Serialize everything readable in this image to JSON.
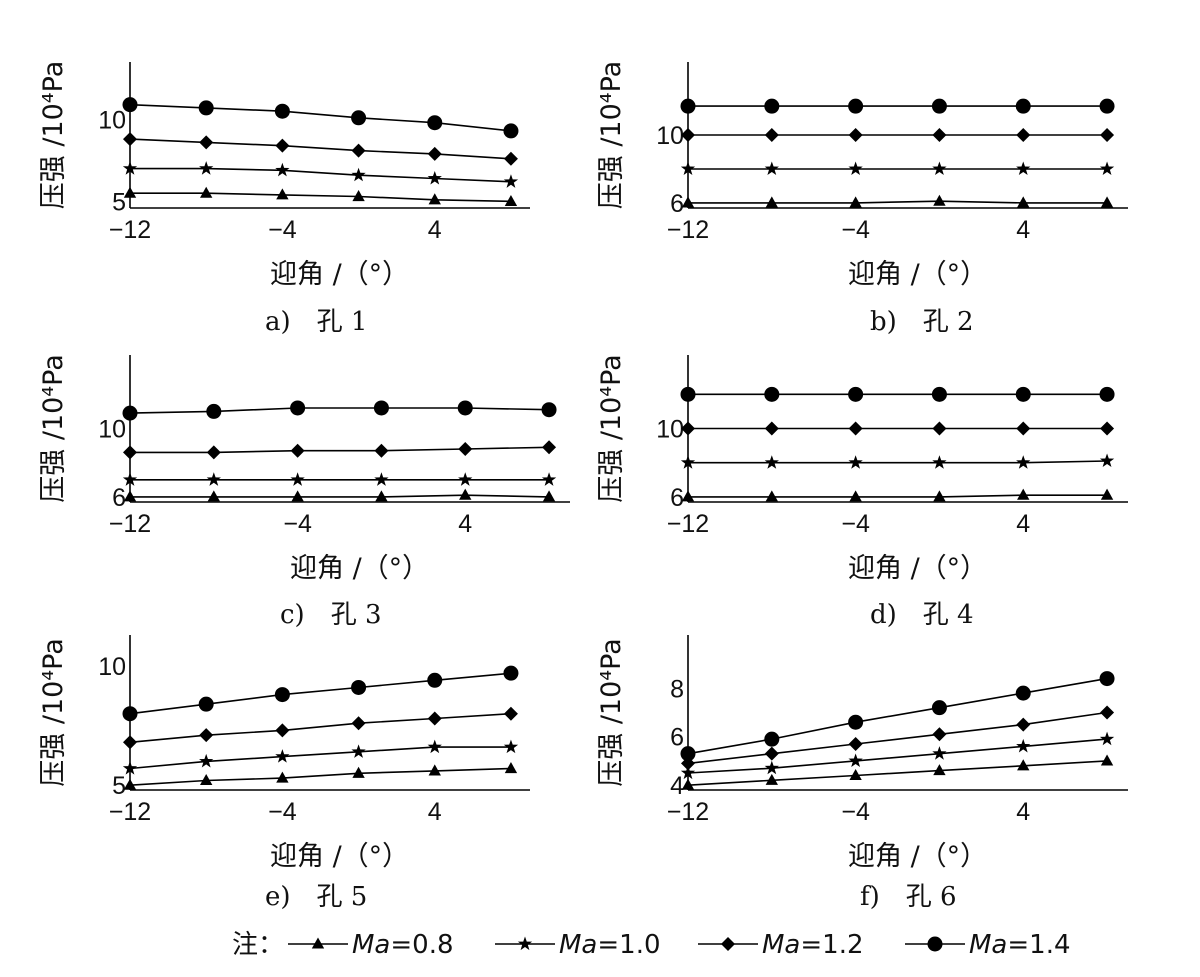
{
  "axis_labels": {
    "x": "迎角 /（°）",
    "y": "压强 /10⁴Pa"
  },
  "legend": {
    "prefix": "注：",
    "entries": [
      {
        "var": "Ma",
        "eq": "=0.8",
        "marker": "triangle"
      },
      {
        "var": "Ma",
        "eq": "=1.0",
        "marker": "star"
      },
      {
        "var": "Ma",
        "eq": "=1.2",
        "marker": "diamond"
      },
      {
        "var": "Ma",
        "eq": "=1.4",
        "marker": "circle"
      }
    ]
  },
  "chart_data": [
    {
      "type": "line",
      "caption": "a)　孔 1",
      "x": [
        -12,
        -8,
        -4,
        0,
        4,
        8
      ],
      "xticks": [
        -12,
        -4,
        4
      ],
      "xlim": [
        -12,
        9
      ],
      "ylim": [
        4.6,
        13.5
      ],
      "yticks": [
        5,
        10
      ],
      "series": [
        {
          "name": "Ma=0.8",
          "marker": "triangle",
          "values": [
            5.5,
            5.5,
            5.4,
            5.3,
            5.1,
            5.0
          ]
        },
        {
          "name": "Ma=1.0",
          "marker": "star",
          "values": [
            7.0,
            7.0,
            6.9,
            6.6,
            6.4,
            6.2
          ]
        },
        {
          "name": "Ma=1.2",
          "marker": "diamond",
          "values": [
            8.8,
            8.6,
            8.4,
            8.1,
            7.9,
            7.6
          ]
        },
        {
          "name": "Ma=1.4",
          "marker": "circle",
          "values": [
            10.9,
            10.7,
            10.5,
            10.1,
            9.8,
            9.3
          ]
        }
      ]
    },
    {
      "type": "line",
      "caption": "b)　孔 2",
      "x": [
        -12,
        -8,
        -4,
        0,
        4,
        8
      ],
      "xticks": [
        -12,
        -4,
        4
      ],
      "xlim": [
        -12,
        9
      ],
      "ylim": [
        5.7,
        14.3
      ],
      "yticks": [
        6,
        10
      ],
      "series": [
        {
          "name": "Ma=0.8",
          "marker": "triangle",
          "values": [
            6.0,
            6.0,
            6.0,
            6.1,
            6.0,
            6.0
          ]
        },
        {
          "name": "Ma=1.0",
          "marker": "star",
          "values": [
            8.0,
            8.0,
            8.0,
            8.0,
            8.0,
            8.0
          ]
        },
        {
          "name": "Ma=1.2",
          "marker": "diamond",
          "values": [
            10.0,
            10.0,
            10.0,
            10.0,
            10.0,
            10.0
          ]
        },
        {
          "name": "Ma=1.4",
          "marker": "circle",
          "values": [
            11.7,
            11.7,
            11.7,
            11.7,
            11.7,
            11.7
          ]
        }
      ]
    },
    {
      "type": "line",
      "caption": "c)　孔 3",
      "x": [
        -12,
        -8,
        -4,
        0,
        4,
        8
      ],
      "xticks": [
        -12,
        -4,
        4
      ],
      "xlim": [
        -12,
        9
      ],
      "ylim": [
        5.7,
        14.3
      ],
      "yticks": [
        6,
        10
      ],
      "series": [
        {
          "name": "Ma=0.8",
          "marker": "triangle",
          "values": [
            6.0,
            6.0,
            6.0,
            6.0,
            6.1,
            6.0
          ]
        },
        {
          "name": "Ma=1.0",
          "marker": "star",
          "values": [
            7.0,
            7.0,
            7.0,
            7.0,
            7.0,
            7.0
          ]
        },
        {
          "name": "Ma=1.2",
          "marker": "diamond",
          "values": [
            8.6,
            8.6,
            8.7,
            8.7,
            8.8,
            8.9
          ]
        },
        {
          "name": "Ma=1.4",
          "marker": "circle",
          "values": [
            10.9,
            11.0,
            11.2,
            11.2,
            11.2,
            11.1
          ]
        }
      ]
    },
    {
      "type": "line",
      "caption": "d)　孔 4",
      "x": [
        -12,
        -8,
        -4,
        0,
        4,
        8
      ],
      "xticks": [
        -12,
        -4,
        4
      ],
      "xlim": [
        -12,
        9
      ],
      "ylim": [
        5.7,
        14.3
      ],
      "yticks": [
        6,
        10
      ],
      "series": [
        {
          "name": "Ma=0.8",
          "marker": "triangle",
          "values": [
            6.0,
            6.0,
            6.0,
            6.0,
            6.1,
            6.1
          ]
        },
        {
          "name": "Ma=1.0",
          "marker": "star",
          "values": [
            8.0,
            8.0,
            8.0,
            8.0,
            8.0,
            8.1
          ]
        },
        {
          "name": "Ma=1.2",
          "marker": "diamond",
          "values": [
            10.0,
            10.0,
            10.0,
            10.0,
            10.0,
            10.0
          ]
        },
        {
          "name": "Ma=1.4",
          "marker": "circle",
          "values": [
            12.0,
            12.0,
            12.0,
            12.0,
            12.0,
            12.0
          ]
        }
      ]
    },
    {
      "type": "line",
      "caption": "e)　孔 5",
      "x": [
        -12,
        -8,
        -4,
        0,
        4,
        8
      ],
      "xticks": [
        -12,
        -4,
        4
      ],
      "xlim": [
        -12,
        9
      ],
      "ylim": [
        4.8,
        11.3
      ],
      "yticks": [
        5,
        10
      ],
      "series": [
        {
          "name": "Ma=0.8",
          "marker": "triangle",
          "values": [
            5.0,
            5.2,
            5.3,
            5.5,
            5.6,
            5.7
          ]
        },
        {
          "name": "Ma=1.0",
          "marker": "star",
          "values": [
            5.7,
            6.0,
            6.2,
            6.4,
            6.6,
            6.6
          ]
        },
        {
          "name": "Ma=1.2",
          "marker": "diamond",
          "values": [
            6.8,
            7.1,
            7.3,
            7.6,
            7.8,
            8.0
          ]
        },
        {
          "name": "Ma=1.4",
          "marker": "circle",
          "values": [
            8.0,
            8.4,
            8.8,
            9.1,
            9.4,
            9.7
          ]
        }
      ]
    },
    {
      "type": "line",
      "caption": "f)　孔 6",
      "x": [
        -12,
        -8,
        -4,
        0,
        4,
        8
      ],
      "xticks": [
        -12,
        -4,
        4
      ],
      "xlim": [
        -12,
        9
      ],
      "ylim": [
        3.8,
        10.2
      ],
      "yticks": [
        4,
        6,
        8
      ],
      "series": [
        {
          "name": "Ma=0.8",
          "marker": "triangle",
          "values": [
            4.0,
            4.2,
            4.4,
            4.6,
            4.8,
            5.0
          ]
        },
        {
          "name": "Ma=1.0",
          "marker": "star",
          "values": [
            4.5,
            4.7,
            5.0,
            5.3,
            5.6,
            5.9
          ]
        },
        {
          "name": "Ma=1.2",
          "marker": "diamond",
          "values": [
            4.9,
            5.3,
            5.7,
            6.1,
            6.5,
            7.0
          ]
        },
        {
          "name": "Ma=1.4",
          "marker": "circle",
          "values": [
            5.3,
            5.9,
            6.6,
            7.2,
            7.8,
            8.4
          ]
        }
      ]
    }
  ]
}
